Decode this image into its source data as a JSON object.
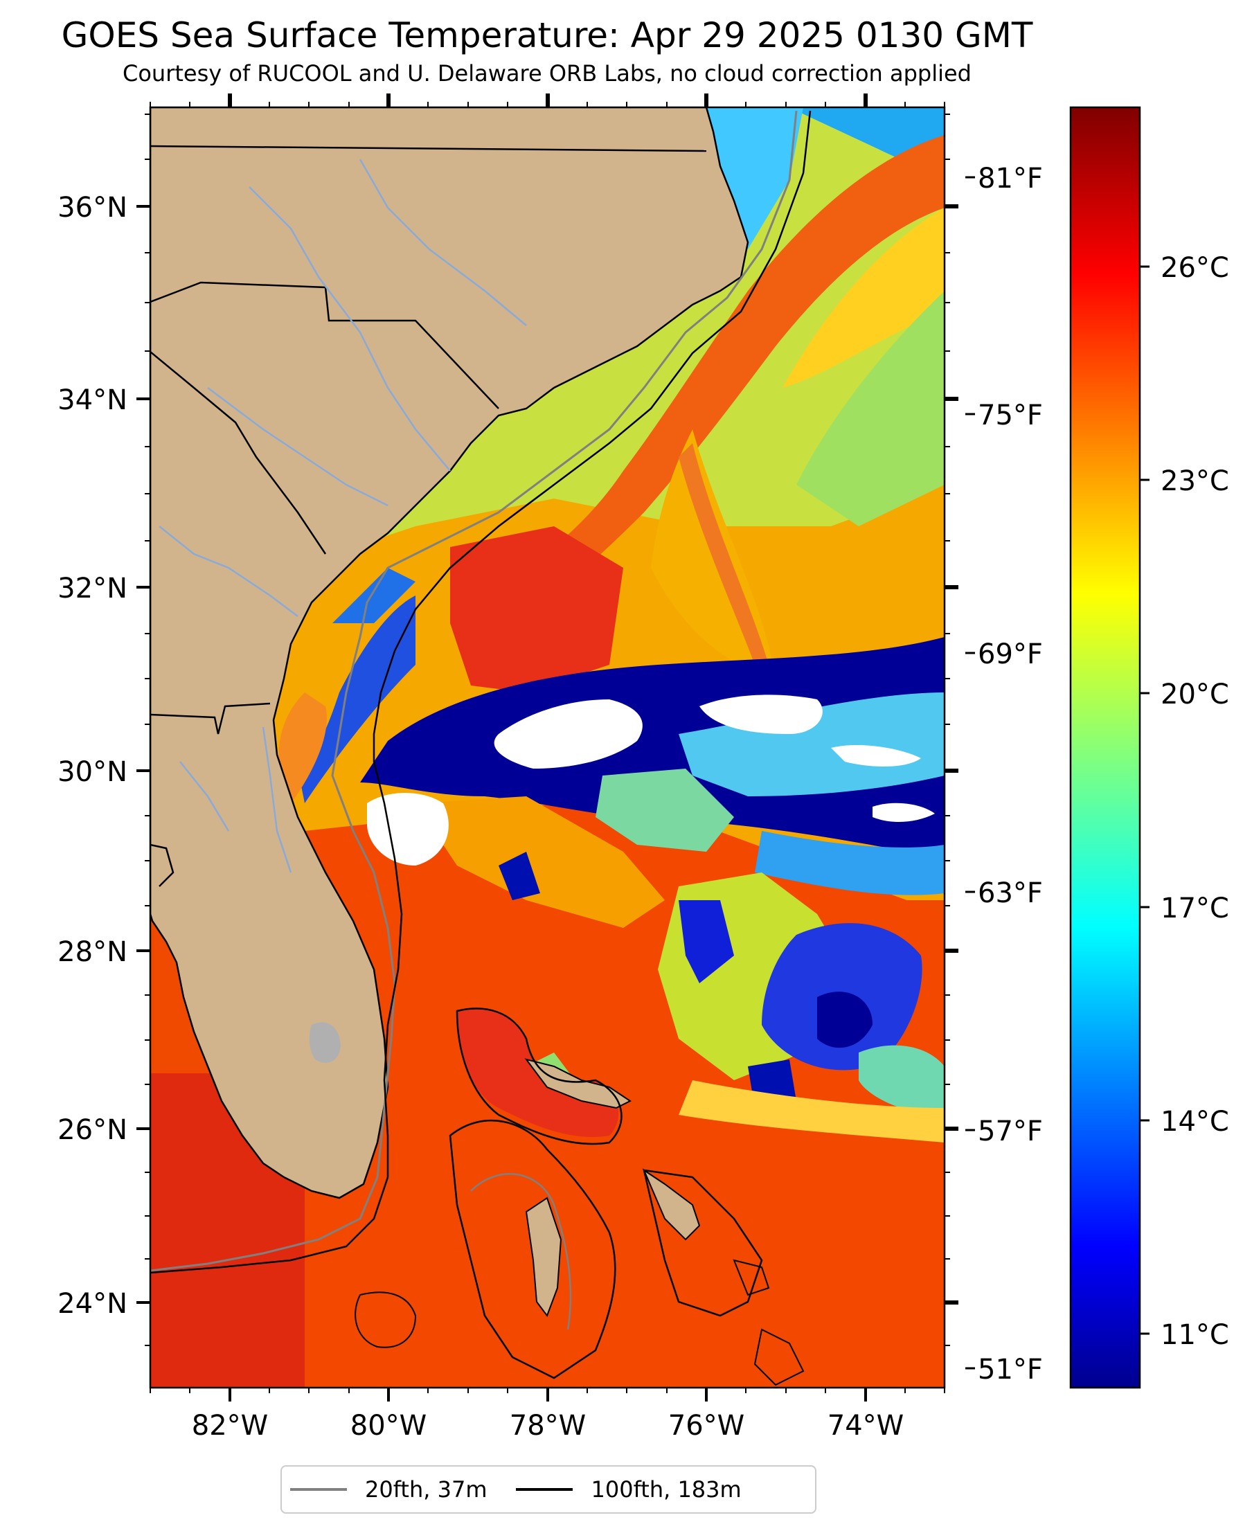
{
  "title": "GOES Sea Surface Temperature: Apr 29 2025 0130 GMT",
  "subtitle": "Courtesy of RUCOOL and U. Delaware ORB Labs, no cloud correction applied",
  "map": {
    "lon_range": [
      -83,
      -73
    ],
    "lat_range": [
      23.1,
      37
    ],
    "lat_ticks": [
      "36°N",
      "34°N",
      "32°N",
      "30°N",
      "28°N",
      "26°N",
      "24°N"
    ],
    "lon_ticks": [
      "82°W",
      "80°W",
      "78°W",
      "76°W",
      "74°W"
    ],
    "fahrenheit_ticks": [
      "81°F",
      "75°F",
      "69°F",
      "63°F",
      "57°F",
      "51°F"
    ],
    "land_color": "#d2b48c",
    "cloud_color": "#ffffff"
  },
  "colorbar": {
    "colormap": "jet",
    "range_c": [
      10,
      28
    ],
    "ticks": [
      "26°C",
      "23°C",
      "20°C",
      "17°C",
      "14°C",
      "11°C"
    ]
  },
  "legend": {
    "items": [
      {
        "label": "20fth, 37m",
        "color": "#808080"
      },
      {
        "label": "100fth, 183m",
        "color": "#000000"
      }
    ]
  }
}
